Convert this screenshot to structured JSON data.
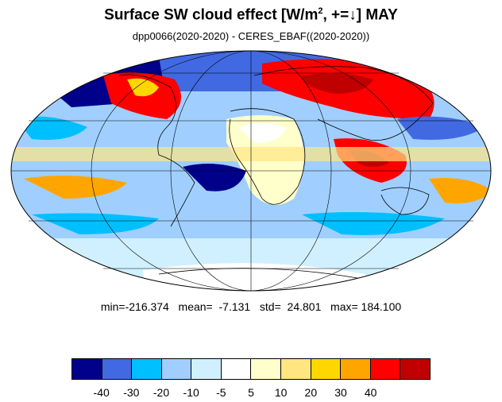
{
  "title": {
    "main": "Surface SW cloud effect [W/m",
    "sup": "2",
    "rest": ", +=↓]  MAY"
  },
  "subtitle": "dpp0066(2020-2020) - CERES_EBAF((2020-2020))",
  "stats": {
    "min_label": "min=",
    "min": "-216.374",
    "mean_label": "mean=",
    "mean": "-7.131",
    "std_label": "std=",
    "std": "24.801",
    "max_label": "max=",
    "max": "184.100"
  },
  "colorbar": {
    "colors": [
      "#00008b",
      "#4169e1",
      "#00bfff",
      "#a0cfff",
      "#d0f0ff",
      "#ffffff",
      "#ffffcc",
      "#ffe680",
      "#ffd700",
      "#ffa500",
      "#ff0000",
      "#c00000"
    ],
    "tick_labels": [
      "-40",
      "-30",
      "-20",
      "-10",
      "-5",
      "5",
      "10",
      "20",
      "30",
      "40"
    ]
  },
  "map": {
    "projection": "Mollweide",
    "grid": true,
    "coastlines": true
  }
}
